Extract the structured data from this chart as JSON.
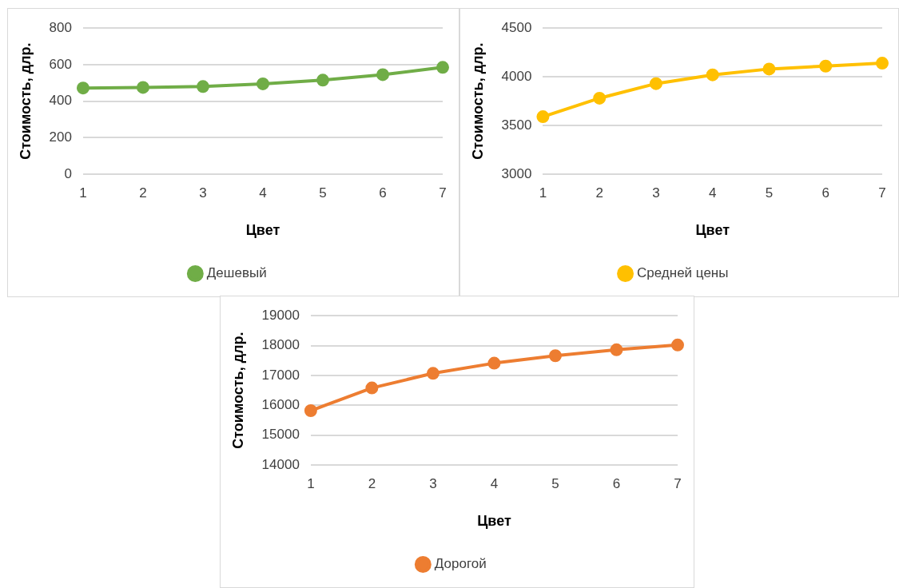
{
  "chart_data": [
    {
      "type": "line",
      "categories": [
        "1",
        "2",
        "3",
        "4",
        "5",
        "6",
        "7"
      ],
      "xlabel": "Цвет",
      "ylabel": "Стоимость, длр.",
      "ylim": [
        0,
        800
      ],
      "yticks": [
        0,
        200,
        400,
        600,
        800
      ],
      "grid": "y",
      "legend": "bottom",
      "marker": "circle",
      "line_style": "solid",
      "series": [
        {
          "name": "Дешевый",
          "color": "#70ad47",
          "values": [
            472,
            475,
            480,
            495,
            515,
            545,
            585
          ]
        }
      ]
    },
    {
      "type": "line",
      "categories": [
        "1",
        "2",
        "3",
        "4",
        "5",
        "6",
        "7"
      ],
      "xlabel": "Цвет",
      "ylabel": "Стоимость, длр.",
      "ylim": [
        3000,
        4500
      ],
      "yticks": [
        3000,
        3500,
        4000,
        4500
      ],
      "grid": "y",
      "legend": "bottom",
      "marker": "circle",
      "line_style": "solid",
      "series": [
        {
          "name": "Средней цены",
          "color": "#ffc000",
          "values": [
            3590,
            3780,
            3930,
            4020,
            4080,
            4110,
            4140
          ]
        }
      ]
    },
    {
      "type": "line",
      "categories": [
        "1",
        "2",
        "3",
        "4",
        "5",
        "6",
        "7"
      ],
      "xlabel": "Цвет",
      "ylabel": "Стоимость, длр.",
      "ylim": [
        14000,
        19000
      ],
      "yticks": [
        14000,
        15000,
        16000,
        17000,
        18000,
        19000
      ],
      "grid": "y",
      "legend": "bottom",
      "marker": "circle",
      "line_style": "solid",
      "series": [
        {
          "name": "Дорогой",
          "color": "#ed7d31",
          "values": [
            15820,
            16580,
            17070,
            17410,
            17660,
            17860,
            18020
          ]
        }
      ]
    }
  ]
}
